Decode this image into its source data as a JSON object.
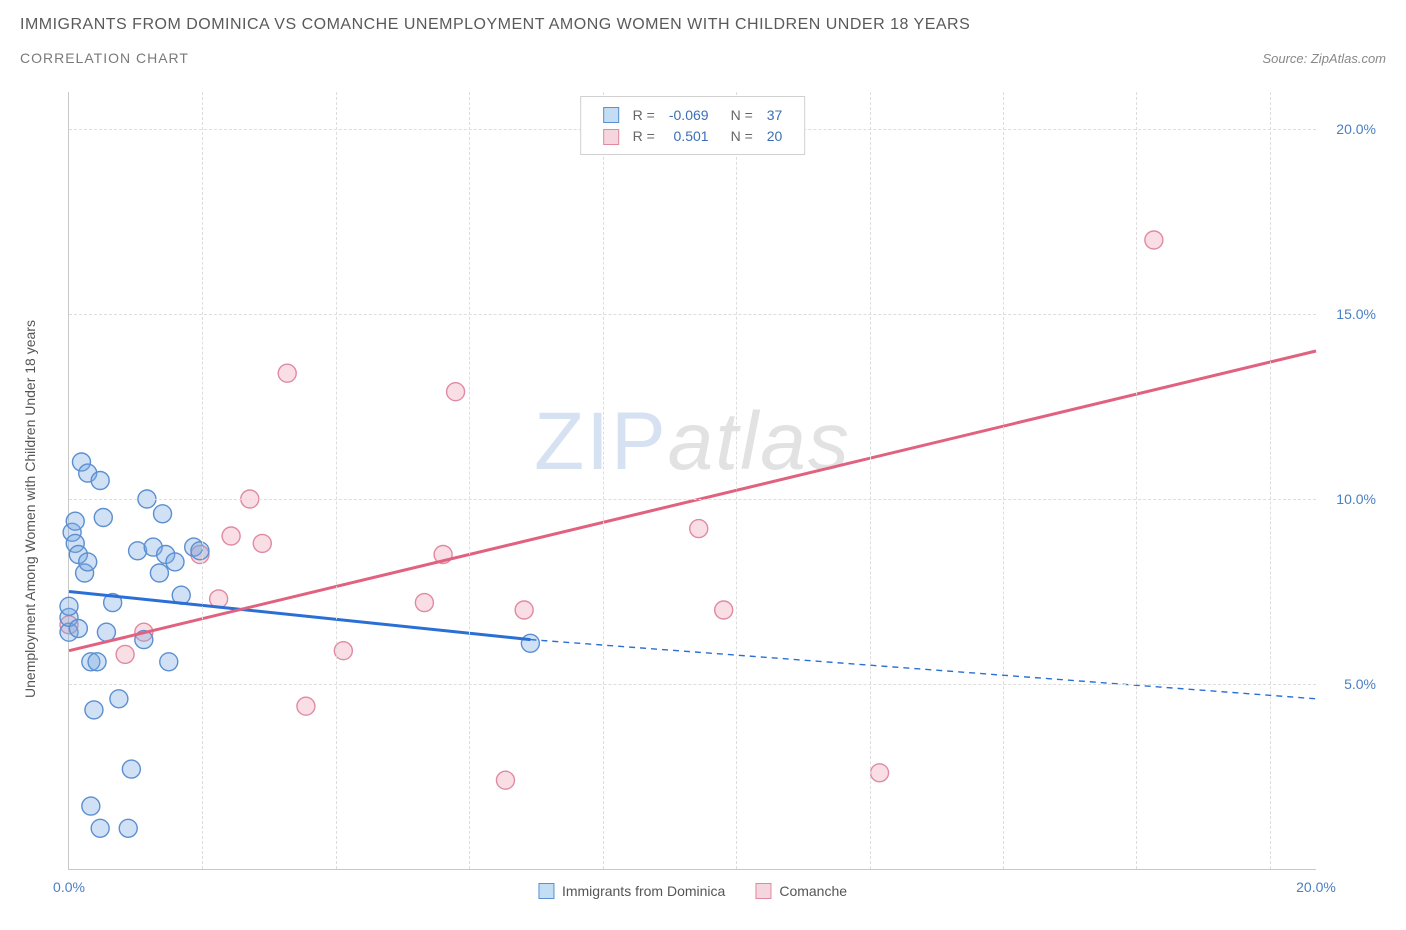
{
  "header": {
    "title": "IMMIGRANTS FROM DOMINICA VS COMANCHE UNEMPLOYMENT AMONG WOMEN WITH CHILDREN UNDER 18 YEARS",
    "subtitle": "CORRELATION CHART",
    "source": "Source: ZipAtlas.com"
  },
  "chart": {
    "type": "scatter",
    "y_axis_label": "Unemployment Among Women with Children Under 18 years",
    "xlim": [
      0,
      20
    ],
    "ylim": [
      0,
      21
    ],
    "x_ticks": [
      0,
      20
    ],
    "x_tick_labels": [
      "0.0%",
      "20.0%"
    ],
    "y_ticks": [
      5,
      10,
      15,
      20
    ],
    "y_tick_labels": [
      "5.0%",
      "10.0%",
      "15.0%",
      "20.0%"
    ],
    "vgrid_x": [
      2.14,
      4.28,
      6.42,
      8.56,
      10.7,
      12.84,
      14.98,
      17.12,
      19.26
    ],
    "background_color": "#ffffff",
    "grid_color": "#dddddd",
    "axis_color": "#c8c8c8",
    "tick_label_color": "#4a7fc4",
    "watermark": {
      "part_a": "ZIP",
      "part_b": "atlas"
    },
    "series": [
      {
        "name": "Immigrants from Dominica",
        "color_fill": "rgba(120,170,225,0.35)",
        "color_stroke": "#5b8fd1",
        "swatch_fill": "#c3ddf5",
        "swatch_stroke": "#5b8fd1",
        "marker_radius": 9,
        "R": "-0.069",
        "N": "37",
        "trend": {
          "x1": 0,
          "y1": 7.5,
          "x2": 7.4,
          "y2": 6.2,
          "ext_x2": 20,
          "ext_y2": 4.6,
          "color": "#2a6fd6",
          "width": 2
        },
        "points": [
          [
            0.0,
            6.4
          ],
          [
            0.0,
            6.8
          ],
          [
            0.0,
            7.1
          ],
          [
            0.05,
            9.1
          ],
          [
            0.1,
            8.8
          ],
          [
            0.1,
            9.4
          ],
          [
            0.15,
            6.5
          ],
          [
            0.15,
            8.5
          ],
          [
            0.2,
            11.0
          ],
          [
            0.25,
            8.0
          ],
          [
            0.3,
            8.3
          ],
          [
            0.3,
            10.7
          ],
          [
            0.35,
            5.6
          ],
          [
            0.35,
            1.7
          ],
          [
            0.4,
            4.3
          ],
          [
            0.45,
            5.6
          ],
          [
            0.5,
            1.1
          ],
          [
            0.5,
            10.5
          ],
          [
            0.55,
            9.5
          ],
          [
            0.6,
            6.4
          ],
          [
            0.7,
            7.2
          ],
          [
            0.8,
            4.6
          ],
          [
            0.95,
            1.1
          ],
          [
            1.0,
            2.7
          ],
          [
            1.1,
            8.6
          ],
          [
            1.2,
            6.2
          ],
          [
            1.25,
            10.0
          ],
          [
            1.35,
            8.7
          ],
          [
            1.45,
            8.0
          ],
          [
            1.5,
            9.6
          ],
          [
            1.55,
            8.5
          ],
          [
            1.6,
            5.6
          ],
          [
            1.7,
            8.3
          ],
          [
            1.8,
            7.4
          ],
          [
            2.0,
            8.7
          ],
          [
            2.1,
            8.6
          ],
          [
            7.4,
            6.1
          ]
        ]
      },
      {
        "name": "Comanche",
        "color_fill": "rgba(235,150,170,0.30)",
        "color_stroke": "#e08aa0",
        "swatch_fill": "#f6d6de",
        "swatch_stroke": "#e08aa0",
        "marker_radius": 9,
        "R": "0.501",
        "N": "20",
        "trend": {
          "x1": 0,
          "y1": 5.9,
          "x2": 20,
          "y2": 14.0,
          "color": "#e0627f",
          "width": 2
        },
        "points": [
          [
            0.0,
            6.6
          ],
          [
            0.9,
            5.8
          ],
          [
            1.2,
            6.4
          ],
          [
            2.1,
            8.5
          ],
          [
            2.4,
            7.3
          ],
          [
            2.6,
            9.0
          ],
          [
            2.9,
            10.0
          ],
          [
            3.1,
            8.8
          ],
          [
            3.5,
            13.4
          ],
          [
            3.8,
            4.4
          ],
          [
            4.4,
            5.9
          ],
          [
            5.7,
            7.2
          ],
          [
            6.0,
            8.5
          ],
          [
            6.2,
            12.9
          ],
          [
            7.0,
            2.4
          ],
          [
            7.3,
            7.0
          ],
          [
            10.1,
            9.2
          ],
          [
            10.5,
            7.0
          ],
          [
            13.0,
            2.6
          ],
          [
            17.4,
            17.0
          ]
        ]
      }
    ],
    "legend_top_labels": {
      "R": "R =",
      "N": "N ="
    }
  }
}
